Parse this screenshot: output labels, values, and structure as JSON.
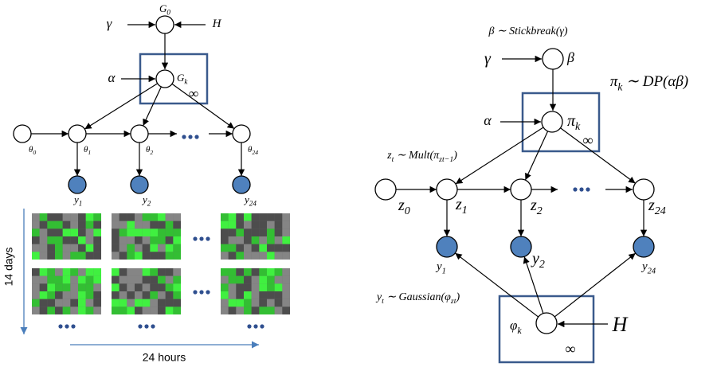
{
  "left": {
    "nodes": [
      {
        "label": "G",
        "sub": "0"
      },
      {
        "label": "G",
        "sub": "k"
      },
      {
        "label": "θ",
        "sub": "0"
      },
      {
        "label": "θ",
        "sub": "1"
      },
      {
        "label": "θ",
        "sub": "2"
      },
      {
        "label": "θ",
        "sub": "24"
      },
      {
        "label": "y",
        "sub": "1"
      },
      {
        "label": "y",
        "sub": "2"
      },
      {
        "label": "y",
        "sub": "24"
      }
    ],
    "inputs": [
      "γ",
      "H",
      "α"
    ],
    "infinity": "∞",
    "axis_labels": {
      "vertical": "14 days",
      "horizontal": "24 hours"
    }
  },
  "right": {
    "nodes": [
      {
        "label": "β"
      },
      {
        "label": "π",
        "sub": "k"
      },
      {
        "label": "z",
        "sub": "0"
      },
      {
        "label": "z",
        "sub": "1"
      },
      {
        "label": "z",
        "sub": "2"
      },
      {
        "label": "z",
        "sub": "24"
      },
      {
        "label": "y",
        "sub": "1"
      },
      {
        "label": "y",
        "sub": "2"
      },
      {
        "label": "y",
        "sub": "24"
      },
      {
        "label": "φ",
        "sub": "k"
      }
    ],
    "inputs": [
      "γ",
      "α",
      "H"
    ],
    "infinity": "∞",
    "annotations": [
      [
        {
          "text": "β ∼ Stickbreak(γ)"
        }
      ],
      [
        {
          "text": "π"
        },
        {
          "text": "k",
          "sub": true
        },
        {
          "text": " ∼ DP(αβ)"
        }
      ],
      [
        {
          "text": "z"
        },
        {
          "text": "t",
          "sub": true
        },
        {
          "text": " ∼ Mult(π"
        },
        {
          "text": "z",
          "sub": true
        },
        {
          "text": "t−1",
          "sub": true
        },
        {
          "text": ")"
        }
      ],
      [
        {
          "text": "y"
        },
        {
          "text": "t",
          "sub": true
        },
        {
          "text": " ∼ Gaussian(φ"
        },
        {
          "text": "z",
          "sub": true
        },
        {
          "text": "t",
          "sub": true
        },
        {
          "text": ")"
        }
      ]
    ]
  }
}
